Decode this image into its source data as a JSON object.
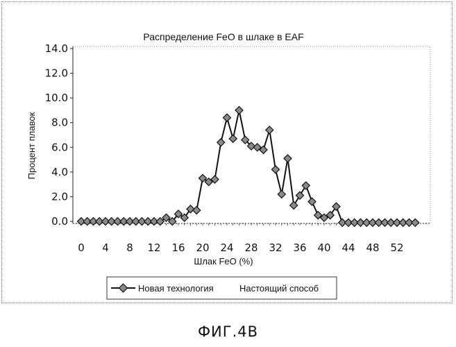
{
  "figure_caption": "ФИГ.4B",
  "chart_data": {
    "type": "line",
    "title": "Распределение FeO в шлаке в EAF",
    "xlabel": "Шлак FeO (%)",
    "ylabel": "Процент плавок",
    "xlim": [
      0,
      55
    ],
    "ylim": [
      0,
      14
    ],
    "x_ticks": [
      "0",
      "4",
      "8",
      "12",
      "16",
      "20",
      "24",
      "28",
      "32",
      "36",
      "40",
      "44",
      "48",
      "52"
    ],
    "y_ticks": [
      "0.0",
      "2.0",
      "4.0",
      "6.0",
      "8.0",
      "10.0",
      "12.0",
      "14.0"
    ],
    "legend": {
      "position": "bottom",
      "entries": [
        "Новая технология",
        "Настоящий способ"
      ]
    },
    "series": [
      {
        "name": "Новая технология",
        "marker": "diamond",
        "color": "#111111",
        "x": [
          0,
          1,
          2,
          3,
          4,
          5,
          6,
          7,
          8,
          9,
          10,
          11,
          12,
          13,
          14,
          15,
          16,
          17,
          18,
          19,
          20,
          21,
          22,
          23,
          24,
          25,
          26,
          27,
          28,
          29,
          30,
          31,
          32,
          33,
          34,
          35,
          36,
          37,
          38,
          39,
          40,
          41,
          42,
          43,
          44,
          45,
          46,
          47,
          48,
          49,
          50,
          51,
          52,
          53,
          54,
          55
        ],
        "values": [
          0,
          0,
          0,
          0,
          0,
          0,
          0,
          0,
          0,
          0,
          0,
          0,
          0,
          0,
          0.3,
          0,
          0.6,
          0.3,
          1.0,
          0.9,
          3.5,
          3.2,
          3.4,
          6.4,
          8.4,
          6.7,
          9.0,
          6.6,
          6.1,
          6.0,
          5.8,
          7.4,
          4.2,
          2.2,
          5.1,
          1.3,
          2.1,
          2.9,
          1.6,
          0.5,
          0.3,
          0.5,
          1.2,
          -0.1,
          -0.1,
          -0.1,
          -0.1,
          -0.1,
          -0.1,
          -0.1,
          -0.1,
          -0.1,
          -0.1,
          -0.1,
          -0.1,
          -0.1
        ]
      },
      {
        "name": "Настоящий способ",
        "marker": "none",
        "x": [],
        "values": []
      }
    ]
  }
}
